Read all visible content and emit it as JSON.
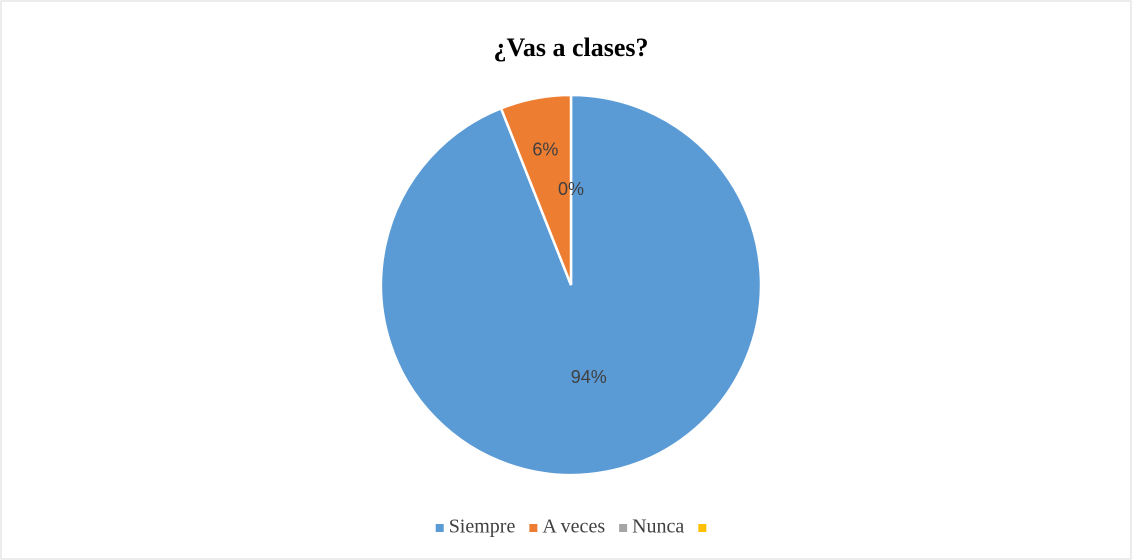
{
  "chart_data": {
    "type": "pie",
    "title": "¿Vas a clases?",
    "categories": [
      "Siempre",
      "A veces",
      "Nunca",
      null
    ],
    "values": [
      94,
      6,
      0,
      null
    ],
    "value_labels": [
      "94%",
      "6%",
      "0%",
      null
    ],
    "colors": [
      "#5b9bd5",
      "#ed7d31",
      "#a5a5a5",
      "#ffc000"
    ],
    "legend": "bottom"
  }
}
